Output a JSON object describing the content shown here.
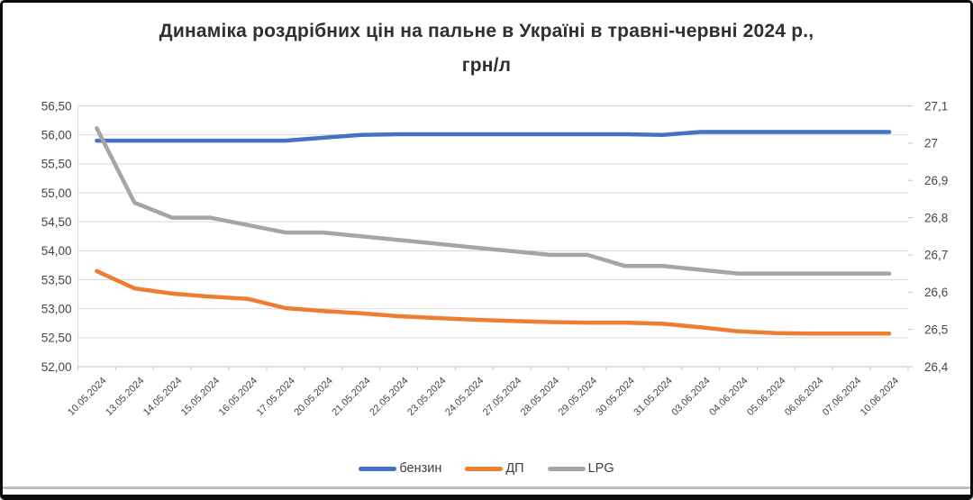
{
  "title": {
    "line1": "Динаміка роздрібних цін на пальне в Україні в травні-червні 2024 р.,",
    "line2": "грн/л"
  },
  "legend": {
    "items": [
      {
        "id": "petrol",
        "label": "бензин",
        "color": "#4472C4"
      },
      {
        "id": "diesel",
        "label": "ДП",
        "color": "#ED7D31"
      },
      {
        "id": "lpg",
        "label": "LPG",
        "color": "#A5A5A5"
      }
    ]
  },
  "chart_data": {
    "type": "line",
    "title": "Динаміка роздрібних цін на пальне в Україні в травні-червні 2024 р., грн/л",
    "grid": true,
    "legend_position": "bottom",
    "categories": [
      "10.05.2024",
      "13.05.2024",
      "14.05.2024",
      "15.05.2024",
      "16.05.2024",
      "17.05.2024",
      "20.05.2024",
      "21.05.2024",
      "22.05.2024",
      "23.05.2024",
      "24.05.2024",
      "27.05.2024",
      "28.05.2024",
      "29.05.2024",
      "30.05.2024",
      "31.05.2024",
      "03.06.2024",
      "04.06.2024",
      "05.06.2024",
      "06.06.2024",
      "07.06.2024",
      "10.06.2024"
    ],
    "left_axis": {
      "min": 52.0,
      "max": 56.5,
      "ticks": [
        "56,50",
        "56,00",
        "55,50",
        "55,00",
        "54,50",
        "54,00",
        "53,50",
        "53,00",
        "52,50",
        "52,00"
      ]
    },
    "right_axis": {
      "min": 26.4,
      "max": 27.1,
      "ticks": [
        "27,1",
        "27",
        "26,9",
        "26,8",
        "26,7",
        "26,6",
        "26,5",
        "26,4"
      ]
    },
    "series": [
      {
        "id": "petrol",
        "name": "бензин",
        "axis": "left",
        "color": "#4472C4",
        "values": [
          55.9,
          55.9,
          55.9,
          55.9,
          55.9,
          55.9,
          55.95,
          56.0,
          56.01,
          56.01,
          56.01,
          56.01,
          56.01,
          56.01,
          56.01,
          56.0,
          56.05,
          56.05,
          56.05,
          56.05,
          56.05,
          56.05
        ]
      },
      {
        "id": "diesel",
        "name": "ДП",
        "axis": "left",
        "color": "#ED7D31",
        "values": [
          53.65,
          53.35,
          53.26,
          53.21,
          53.17,
          53.01,
          52.96,
          52.92,
          52.87,
          52.84,
          52.81,
          52.79,
          52.77,
          52.76,
          52.76,
          52.74,
          52.68,
          52.61,
          52.58,
          52.57,
          52.57,
          52.57
        ]
      },
      {
        "id": "lpg",
        "name": "LPG",
        "axis": "right",
        "color": "#A5A5A5",
        "values": [
          27.04,
          26.84,
          26.8,
          26.8,
          26.78,
          26.76,
          26.76,
          26.75,
          26.74,
          26.73,
          26.72,
          26.71,
          26.7,
          26.7,
          26.67,
          26.67,
          26.66,
          26.65,
          26.65,
          26.65,
          26.65,
          26.65
        ]
      }
    ]
  }
}
